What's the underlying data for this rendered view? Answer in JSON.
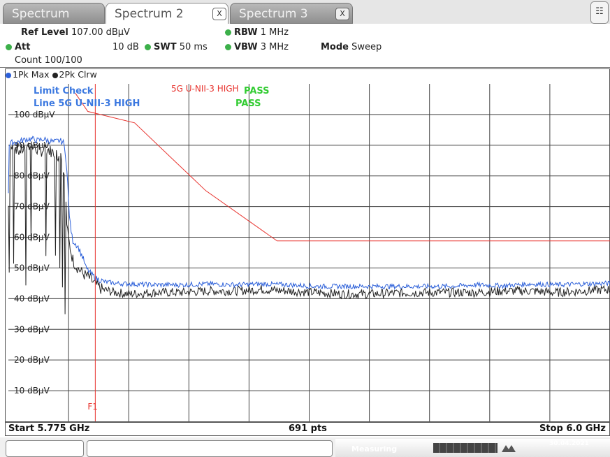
{
  "tabs": [
    {
      "label": "Spectrum",
      "active": false
    },
    {
      "label": "Spectrum 2",
      "active": true,
      "close": "X"
    },
    {
      "label": "Spectrum 3",
      "active": false,
      "close": "X"
    }
  ],
  "header": {
    "ref_level_label": "Ref Level",
    "ref_level_value": "107.00 dBµV",
    "att_label": "Att",
    "att_value": "10 dB",
    "swt_label": "SWT",
    "swt_value": "50 ms",
    "rbw_label": "RBW",
    "rbw_value": "1 MHz",
    "vbw_label": "VBW",
    "vbw_value": "3 MHz",
    "mode_label": "Mode",
    "mode_value": "Sweep",
    "count": "Count 100/100"
  },
  "traces": [
    {
      "label": "1Pk Max",
      "color": "#2b5fd9"
    },
    {
      "label": "2Pk Clrw",
      "color": "#222222"
    }
  ],
  "limit": {
    "check_label": "Limit Check",
    "line_label": "Line 5G U-NII-3 HIGH",
    "line_result": "PASS",
    "name_on_plot": "5G U-NII-3 HIGH",
    "name_result": "PASS",
    "color": "#e8332e",
    "pass_color": "#33cc33"
  },
  "marker_label": "F1",
  "footer": {
    "start": "Start 5.775 GHz",
    "points": "691 pts",
    "stop": "Stop 6.0 GHz"
  },
  "status": {
    "measuring": "Measuring",
    "date": "30.04.2021"
  },
  "chart_data": {
    "type": "line",
    "x_unit": "GHz",
    "xlim": [
      5.775,
      6.0
    ],
    "ylim": [
      0,
      110
    ],
    "yticks": [
      10,
      20,
      30,
      40,
      50,
      60,
      70,
      80,
      90,
      100
    ],
    "ytick_labels": [
      "10 dBµV",
      "20 dBµV",
      "30 dBµV",
      "40 dBµV",
      "50 dBµV",
      "60 dBµV",
      "70 dBµV",
      "80 dBµV",
      "90 dBµV",
      "100 dBµV"
    ],
    "grid": true,
    "vertical_divisions": 10,
    "marker_line_x": 5.8075,
    "limit_line": {
      "name": "5G U-NII-3 HIGH",
      "x": [
        5.8,
        5.8,
        5.8047,
        5.8222,
        5.8488,
        5.8755,
        6.0
      ],
      "y": [
        107,
        107,
        101,
        97.3,
        75.2,
        58.8,
        58.8
      ]
    },
    "series": [
      {
        "name": "1Pk Max",
        "color": "#2b5fd9",
        "x": [
          5.775,
          5.7753,
          5.7765,
          5.778,
          5.78,
          5.782,
          5.784,
          5.786,
          5.788,
          5.79,
          5.792,
          5.794,
          5.7955,
          5.7963,
          5.797,
          5.7975,
          5.798,
          5.799,
          5.8,
          5.801,
          5.802,
          5.803,
          5.804,
          5.806,
          5.808,
          5.811,
          5.815,
          5.82,
          5.83,
          5.84,
          5.85,
          5.86,
          5.87,
          5.88,
          5.89,
          5.9,
          5.91,
          5.92,
          5.93,
          5.94,
          5.95,
          5.96,
          5.97,
          5.98,
          5.99,
          6.0
        ],
        "y": [
          75,
          90,
          91,
          91,
          91.5,
          92,
          92,
          91.5,
          92,
          91.5,
          91,
          91.5,
          91,
          88,
          80,
          72,
          65,
          59,
          58,
          57,
          55,
          53,
          50,
          48,
          46.5,
          45.5,
          45,
          44.8,
          44.5,
          44.5,
          44.8,
          44.5,
          44.8,
          44.5,
          44,
          44,
          44,
          44,
          44,
          44,
          44.5,
          44.2,
          44.8,
          44.5,
          44.8,
          45
        ]
      },
      {
        "name": "2Pk Clrw",
        "color": "#222222",
        "x": [
          5.775,
          5.7755,
          5.777,
          5.779,
          5.781,
          5.783,
          5.785,
          5.787,
          5.789,
          5.791,
          5.793,
          5.795,
          5.796,
          5.797,
          5.798,
          5.799,
          5.8,
          5.801,
          5.803,
          5.805,
          5.807,
          5.81,
          5.815,
          5.82,
          5.83,
          5.84,
          5.85,
          5.86,
          5.87,
          5.88,
          5.89,
          5.9,
          5.91,
          5.92,
          5.93,
          5.94,
          5.95,
          5.96,
          5.97,
          5.98,
          5.99,
          6.0
        ],
        "y": [
          70,
          89,
          90,
          88,
          89,
          90,
          89,
          88,
          89,
          88,
          87,
          86,
          80,
          62,
          57,
          53,
          51,
          50,
          48,
          47,
          45,
          43,
          42,
          41.5,
          42,
          42,
          42.5,
          42.5,
          43,
          42.5,
          42,
          41.5,
          41.5,
          41.8,
          42,
          42,
          42,
          42.5,
          42.5,
          42,
          42.5,
          43
        ]
      }
    ]
  }
}
